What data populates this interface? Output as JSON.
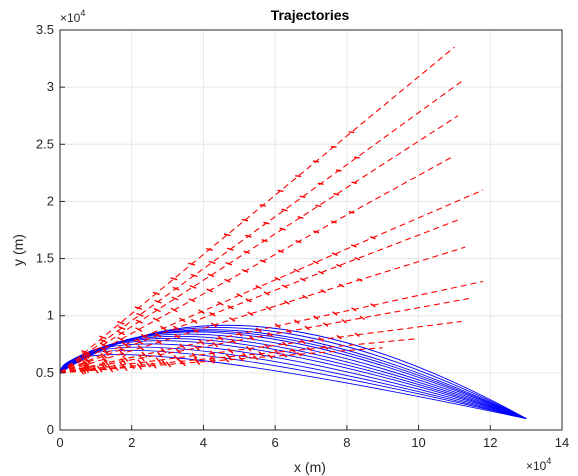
{
  "chart_data": {
    "type": "line",
    "title": "Trajectories",
    "xlabel": "x (m)",
    "ylabel": "y (m)",
    "x_multiplier": "×10",
    "y_multiplier": "×10",
    "exponent": "4",
    "xlim": [
      0,
      140000
    ],
    "ylim": [
      0,
      35000
    ],
    "xticks": [
      0,
      2,
      4,
      6,
      8,
      10,
      12,
      14
    ],
    "yticks": [
      0,
      0.5,
      1,
      1.5,
      2,
      2.5,
      3,
      3.5
    ],
    "grid": true,
    "colors": {
      "ballistic": "#0000ff",
      "rays": "#ff0000",
      "grid": "#e6e6e6",
      "axis": "#262626"
    },
    "origin": [
      0,
      5000
    ],
    "ballistic_endpoint": [
      130000,
      1000
    ],
    "series": [
      {
        "style": "blue-solid",
        "apex_x": [
          33000,
          35000,
          37000,
          39000,
          41000,
          43000,
          45000,
          47000,
          49000,
          51000,
          53000,
          55000,
          57000
        ],
        "apex_y": [
          6300,
          6700,
          7000,
          7300,
          7600,
          7800,
          8000,
          8200,
          8400,
          8500,
          8600,
          8800,
          9000
        ]
      },
      {
        "style": "red-dashed",
        "rays": [
          [
            110000,
            33500
          ],
          [
            112000,
            30500
          ],
          [
            111000,
            27500
          ],
          [
            110000,
            24000
          ],
          [
            118000,
            21000
          ],
          [
            112000,
            18500
          ],
          [
            113000,
            16000
          ],
          [
            118000,
            13000
          ],
          [
            114000,
            11500
          ],
          [
            112000,
            9500
          ],
          [
            100000,
            8000
          ],
          [
            90000,
            7200
          ]
        ]
      }
    ]
  }
}
